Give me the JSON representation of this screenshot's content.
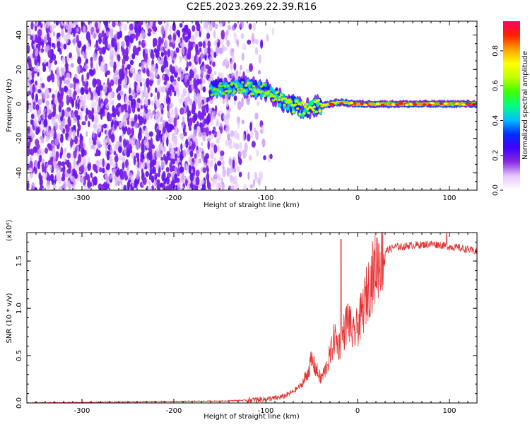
{
  "title": "C2E5.2023.269.22.39.R16",
  "chart_data": [
    {
      "type": "heatmap",
      "xlabel": "Height of straight line (km)",
      "ylabel": "Frequency (Hz)",
      "xlim": [
        -360,
        130
      ],
      "ylim": [
        -50,
        48
      ],
      "x_ticks": [
        "-300",
        "-200",
        "-100",
        "0",
        "100"
      ],
      "x_tick_values": [
        -300,
        -200,
        -100,
        0,
        100
      ],
      "y_ticks": [
        "-40",
        "-20",
        "0",
        "20",
        "40"
      ],
      "y_tick_values": [
        -40,
        -20,
        0,
        20,
        40
      ],
      "grid": false,
      "colorbar": {
        "label": "Normalized spectral amplitude",
        "ticks": [
          "0.0",
          "0.2",
          "0.4",
          "0.6",
          "0.8"
        ],
        "tick_values": [
          0.0,
          0.2,
          0.4,
          0.6,
          0.8
        ],
        "range": [
          0,
          0.97
        ],
        "colormap": [
          "#ffffff",
          "#e6c8ff",
          "#8a2be2",
          "#4000ff",
          "#0030ff",
          "#00c0ff",
          "#00ff80",
          "#40ff00",
          "#c0ff00",
          "#ffff00",
          "#ffa000",
          "#ff2000",
          "#ff0060"
        ]
      },
      "features": {
        "noise_region_x": [
          -360,
          -100
        ],
        "signal_band": [
          {
            "x": -160,
            "f": 9,
            "amp": 0.35
          },
          {
            "x": -140,
            "f": 9,
            "amp": 0.4
          },
          {
            "x": -120,
            "f": 10,
            "amp": 0.45
          },
          {
            "x": -100,
            "f": 8,
            "amp": 0.45
          },
          {
            "x": -80,
            "f": 1,
            "amp": 0.5
          },
          {
            "x": -60,
            "f": -3,
            "amp": 0.55
          },
          {
            "x": -40,
            "f": -1,
            "amp": 0.65
          },
          {
            "x": -20,
            "f": 1,
            "amp": 0.75
          },
          {
            "x": 0,
            "f": 0,
            "amp": 0.8
          },
          {
            "x": 50,
            "f": 0,
            "amp": 0.85
          },
          {
            "x": 100,
            "f": 0,
            "amp": 0.85
          },
          {
            "x": 130,
            "f": 0,
            "amp": 0.8
          }
        ]
      }
    },
    {
      "type": "line",
      "xlabel": "Height of straight line (km)",
      "ylabel": "SNR (10 * v/v)",
      "y_multiplier": "(x10⁴)",
      "xlim": [
        -360,
        130
      ],
      "ylim": [
        0,
        1.8
      ],
      "x_ticks": [
        "-300",
        "-200",
        "-100",
        "0",
        "100"
      ],
      "x_tick_values": [
        -300,
        -200,
        -100,
        0,
        100
      ],
      "y_ticks": [
        "0.0",
        "0.5",
        "1.0",
        "1.5"
      ],
      "y_tick_values": [
        0,
        0.5,
        1.0,
        1.5
      ],
      "color": "#e83030",
      "series": [
        {
          "x": [
            -360,
            -300,
            -250,
            -200,
            -150,
            -120,
            -100,
            -90,
            -80,
            -70,
            -60,
            -55,
            -50,
            -45,
            -40,
            -35,
            -30,
            -25,
            -20,
            -15,
            -10,
            -5,
            0,
            5,
            10,
            15,
            20,
            25,
            30,
            40,
            50,
            60,
            70,
            80,
            90,
            100,
            110,
            120,
            130
          ],
          "y": [
            0.0,
            0.005,
            0.01,
            0.015,
            0.02,
            0.03,
            0.04,
            0.05,
            0.07,
            0.12,
            0.2,
            0.3,
            0.45,
            0.35,
            0.25,
            0.35,
            0.5,
            0.7,
            0.6,
            0.75,
            0.9,
            0.7,
            0.8,
            0.95,
            1.15,
            1.3,
            1.45,
            1.55,
            1.6,
            1.65,
            1.65,
            1.67,
            1.67,
            1.68,
            1.67,
            1.65,
            1.64,
            1.62,
            1.6
          ]
        }
      ]
    }
  ]
}
